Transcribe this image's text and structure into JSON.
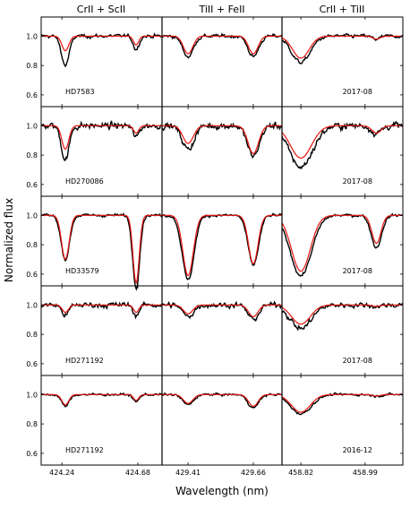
{
  "chart_data": {
    "type": "line",
    "ylabel": "Normalized flux",
    "xlabel": "Wavelength (nm)",
    "column_titles": [
      "CrII + ScII",
      "TiII + FeII",
      "CrII + TiII"
    ],
    "ylim": [
      0.52,
      1.13
    ],
    "yticks": [
      0.6,
      0.8,
      1.0
    ],
    "ytick_labels": [
      "0.6",
      "0.8",
      "1.0"
    ],
    "columns": [
      {
        "xlim": [
          424.12,
          424.82
        ],
        "xticks": [
          424.24,
          424.68
        ],
        "xtick_labels": [
          "424.24",
          "424.68"
        ]
      },
      {
        "xlim": [
          429.31,
          429.77
        ],
        "xticks": [
          429.41,
          429.66
        ],
        "xtick_labels": [
          "429.41",
          "429.66"
        ]
      },
      {
        "xlim": [
          458.77,
          459.09
        ],
        "xticks": [
          458.82,
          458.99
        ],
        "xtick_labels": [
          "458.82",
          "458.99"
        ]
      }
    ],
    "rows": [
      {
        "star": "HD7583",
        "epoch": "2017-08",
        "noise": 0.012,
        "lines": [
          [
            [
              424.26,
              0.1,
              0.02,
              0.1
            ],
            [
              424.67,
              0.06,
              0.015,
              0.03
            ]
          ],
          [
            [
              429.41,
              0.12,
              0.018,
              0.02
            ],
            [
              429.66,
              0.12,
              0.018,
              0.02
            ]
          ],
          [
            [
              458.82,
              0.15,
              0.022,
              0.03
            ],
            [
              459.02,
              0.02,
              0.01,
              0.0
            ]
          ]
        ]
      },
      {
        "star": "HD270086",
        "epoch": "2017-08",
        "noise": 0.022,
        "lines": [
          [
            [
              424.26,
              0.16,
              0.02,
              0.07
            ],
            [
              424.67,
              0.05,
              0.015,
              0.03
            ]
          ],
          [
            [
              429.41,
              0.12,
              0.02,
              0.04
            ],
            [
              429.66,
              0.19,
              0.02,
              0.02
            ]
          ],
          [
            [
              458.82,
              0.22,
              0.028,
              0.06
            ],
            [
              459.02,
              0.05,
              0.012,
              0.0
            ]
          ]
        ]
      },
      {
        "star": "HD33579",
        "epoch": "2017-08",
        "noise": 0.01,
        "lines": [
          [
            [
              424.26,
              0.3,
              0.022,
              0.0
            ],
            [
              424.67,
              0.46,
              0.018,
              0.03
            ]
          ],
          [
            [
              429.41,
              0.41,
              0.02,
              0.03
            ],
            [
              429.66,
              0.33,
              0.018,
              0.01
            ]
          ],
          [
            [
              458.82,
              0.38,
              0.025,
              0.03
            ],
            [
              459.02,
              0.19,
              0.012,
              0.03
            ]
          ]
        ]
      },
      {
        "star": "HD271192",
        "epoch": "2017-08",
        "noise": 0.018,
        "lines": [
          [
            [
              424.26,
              0.05,
              0.018,
              0.02
            ],
            [
              424.67,
              0.05,
              0.015,
              0.02
            ]
          ],
          [
            [
              429.41,
              0.06,
              0.018,
              0.02
            ],
            [
              429.66,
              0.08,
              0.018,
              0.02
            ]
          ],
          [
            [
              458.82,
              0.13,
              0.025,
              0.03
            ],
            [
              459.02,
              0.01,
              0.01,
              0.0
            ]
          ]
        ]
      },
      {
        "star": "HD271192",
        "epoch": "2016-12",
        "noise": 0.008,
        "lines": [
          [
            [
              424.26,
              0.07,
              0.02,
              0.01
            ],
            [
              424.67,
              0.04,
              0.015,
              0.01
            ]
          ],
          [
            [
              429.41,
              0.06,
              0.018,
              0.01
            ],
            [
              429.66,
              0.08,
              0.018,
              0.01
            ]
          ],
          [
            [
              458.82,
              0.12,
              0.025,
              0.01
            ],
            [
              459.02,
              0.01,
              0.01,
              0.0
            ]
          ]
        ]
      }
    ],
    "series": [
      {
        "role": "observed",
        "color": "#000000"
      },
      {
        "role": "model",
        "color": "#e8150f"
      }
    ]
  }
}
